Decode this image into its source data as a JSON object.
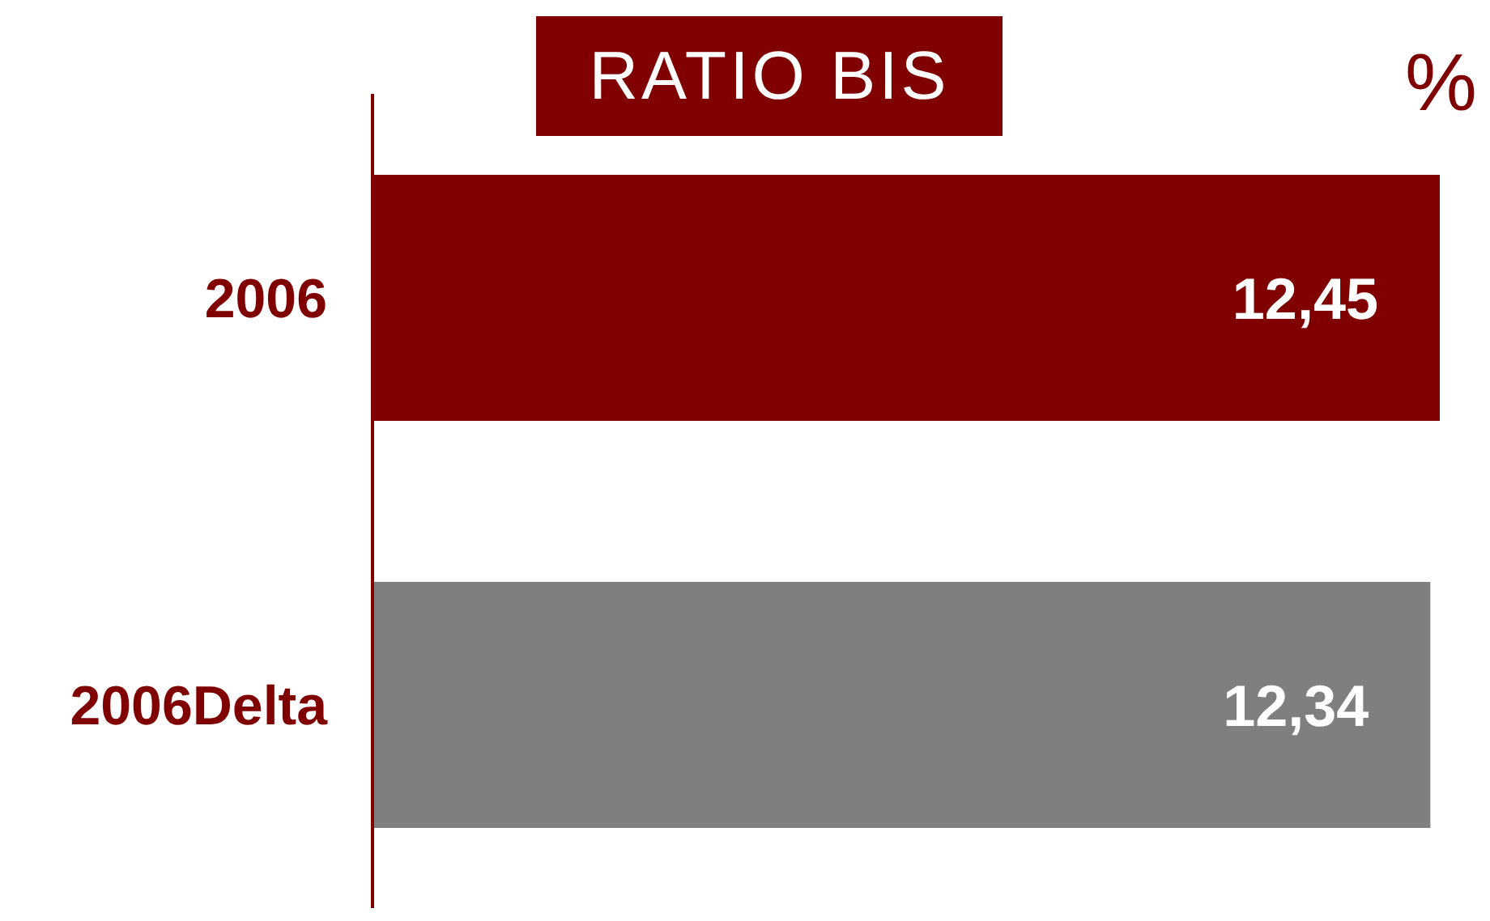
{
  "chart_data": {
    "type": "bar",
    "orientation": "horizontal",
    "title": "RATIO BIS",
    "annotations": [
      "%"
    ],
    "categories": [
      "2006",
      "2006Delta"
    ],
    "values": [
      12.45,
      12.34
    ],
    "colors": [
      "#800000",
      "#7f7f7f"
    ],
    "value_labels": [
      "12,45",
      "12,34"
    ],
    "tick_labels": "y"
  }
}
